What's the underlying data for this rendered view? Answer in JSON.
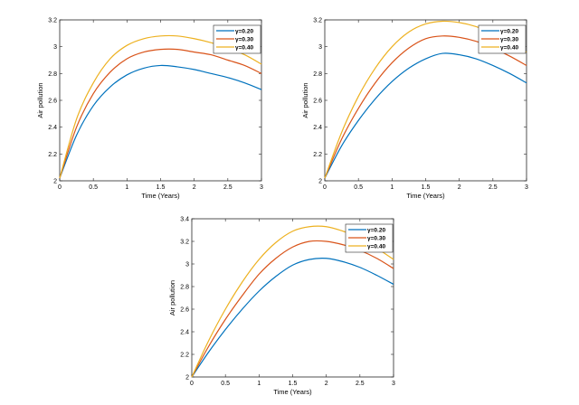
{
  "chart_data": [
    {
      "type": "line",
      "xlabel": "Time (Years)",
      "ylabel": "Air pollution",
      "xlim": [
        0,
        3
      ],
      "ylim": [
        2,
        3.2
      ],
      "xticks": [
        "0",
        "0.5",
        "1",
        "1.5",
        "2",
        "2.5",
        "3"
      ],
      "yticks": [
        "2",
        "2.2",
        "2.4",
        "2.6",
        "2.8",
        "3",
        "3.2"
      ],
      "grid": false,
      "legend_position": "top-right",
      "x": [
        0,
        0.25,
        0.5,
        0.75,
        1.0,
        1.25,
        1.5,
        1.75,
        2.0,
        2.25,
        2.5,
        2.75,
        3.0
      ],
      "series": [
        {
          "name": "γ=0.20",
          "color": "#0072bd",
          "values": [
            2.02,
            2.34,
            2.56,
            2.7,
            2.79,
            2.84,
            2.86,
            2.85,
            2.83,
            2.8,
            2.77,
            2.73,
            2.68
          ]
        },
        {
          "name": "γ=0.30",
          "color": "#d95319",
          "values": [
            2.02,
            2.4,
            2.65,
            2.81,
            2.91,
            2.96,
            2.98,
            2.98,
            2.96,
            2.94,
            2.9,
            2.86,
            2.8
          ]
        },
        {
          "name": "γ=0.40",
          "color": "#edb120",
          "values": [
            2.02,
            2.46,
            2.73,
            2.91,
            3.01,
            3.06,
            3.08,
            3.08,
            3.06,
            3.03,
            2.99,
            2.94,
            2.87
          ]
        }
      ]
    },
    {
      "type": "line",
      "xlabel": "Time (Years)",
      "ylabel": "Air pollution",
      "xlim": [
        0,
        3
      ],
      "ylim": [
        2,
        3.2
      ],
      "xticks": [
        "0",
        "0.5",
        "1",
        "1.5",
        "2",
        "2.5",
        "3"
      ],
      "yticks": [
        "2",
        "2.2",
        "2.4",
        "2.6",
        "2.8",
        "3",
        "3.2"
      ],
      "grid": false,
      "legend_position": "top-right",
      "x": [
        0,
        0.25,
        0.5,
        0.75,
        1.0,
        1.25,
        1.5,
        1.75,
        2.0,
        2.25,
        2.5,
        2.75,
        3.0
      ],
      "series": [
        {
          "name": "γ=0.20",
          "color": "#0072bd",
          "values": [
            2.02,
            2.26,
            2.45,
            2.61,
            2.74,
            2.84,
            2.91,
            2.95,
            2.94,
            2.91,
            2.86,
            2.8,
            2.73
          ]
        },
        {
          "name": "γ=0.30",
          "color": "#d95319",
          "values": [
            2.02,
            2.31,
            2.54,
            2.73,
            2.88,
            2.99,
            3.06,
            3.08,
            3.07,
            3.04,
            2.99,
            2.93,
            2.86
          ]
        },
        {
          "name": "γ=0.40",
          "color": "#edb120",
          "values": [
            2.02,
            2.36,
            2.63,
            2.84,
            3.0,
            3.11,
            3.17,
            3.19,
            3.18,
            3.15,
            3.1,
            3.03,
            2.96
          ]
        }
      ]
    },
    {
      "type": "line",
      "xlabel": "Time (Years)",
      "ylabel": "Air pollution",
      "xlim": [
        0,
        3
      ],
      "ylim": [
        2,
        3.4
      ],
      "xticks": [
        "0",
        "0.5",
        "1",
        "1.5",
        "2",
        "2.5",
        "3"
      ],
      "yticks": [
        "2",
        "2.2",
        "2.4",
        "2.6",
        "2.8",
        "3",
        "3.2",
        "3.4"
      ],
      "grid": false,
      "legend_position": "top-right",
      "x": [
        0,
        0.25,
        0.5,
        0.75,
        1.0,
        1.25,
        1.5,
        1.75,
        2.0,
        2.25,
        2.5,
        2.75,
        3.0
      ],
      "series": [
        {
          "name": "γ=0.20",
          "color": "#0072bd",
          "values": [
            2.0,
            2.22,
            2.42,
            2.6,
            2.76,
            2.89,
            2.99,
            3.04,
            3.05,
            3.02,
            2.97,
            2.9,
            2.82
          ]
        },
        {
          "name": "γ=0.30",
          "color": "#d95319",
          "values": [
            2.0,
            2.27,
            2.51,
            2.72,
            2.91,
            3.05,
            3.15,
            3.2,
            3.2,
            3.17,
            3.12,
            3.05,
            2.96
          ]
        },
        {
          "name": "γ=0.40",
          "color": "#edb120",
          "values": [
            2.0,
            2.32,
            2.6,
            2.84,
            3.04,
            3.19,
            3.29,
            3.33,
            3.33,
            3.29,
            3.23,
            3.14,
            3.04
          ]
        }
      ]
    }
  ]
}
